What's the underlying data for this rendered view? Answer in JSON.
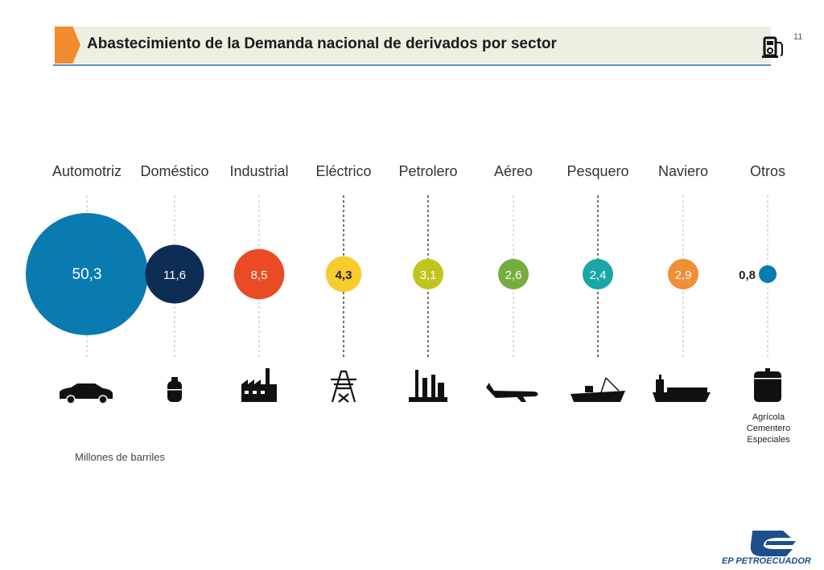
{
  "header": {
    "title": "Abastecimiento de la Demanda nacional de derivados por sector",
    "page_number": "11",
    "icon": "fuel-pump-icon"
  },
  "chart_data": {
    "type": "bubble",
    "title": "",
    "unit_note": "Millones de barriles",
    "categories": [
      "Automotriz",
      "Doméstico",
      "Industrial",
      "Eléctrico",
      "Petrolero",
      "Aéreo",
      "Pesquero",
      "Naviero",
      "Otros"
    ],
    "values": [
      50.3,
      11.6,
      8.5,
      4.3,
      3.1,
      2.6,
      2.4,
      2.9,
      0.8
    ],
    "value_labels": [
      "50,3",
      "11,6",
      "8,5",
      "4,3",
      "3,1",
      "2,6",
      "2,4",
      "2,9",
      "0,8"
    ],
    "colors": [
      "#0a7bb0",
      "#0e2d54",
      "#ea4a24",
      "#f8cc2e",
      "#c2c41e",
      "#74ad3d",
      "#1aa6a8",
      "#f08f35",
      "#0a7bb0"
    ],
    "icons": [
      "car-icon",
      "gas-cylinder-icon",
      "factory-icon",
      "power-tower-icon",
      "refinery-icon",
      "airplane-icon",
      "fishing-boat-icon",
      "cargo-ship-icon",
      "storage-tank-icon"
    ],
    "otros_note": [
      "Agrícola",
      "Cementero",
      "Especiales"
    ]
  },
  "logo": {
    "text": "EP PETROECUADOR",
    "icon": "petroecuador-logo"
  }
}
